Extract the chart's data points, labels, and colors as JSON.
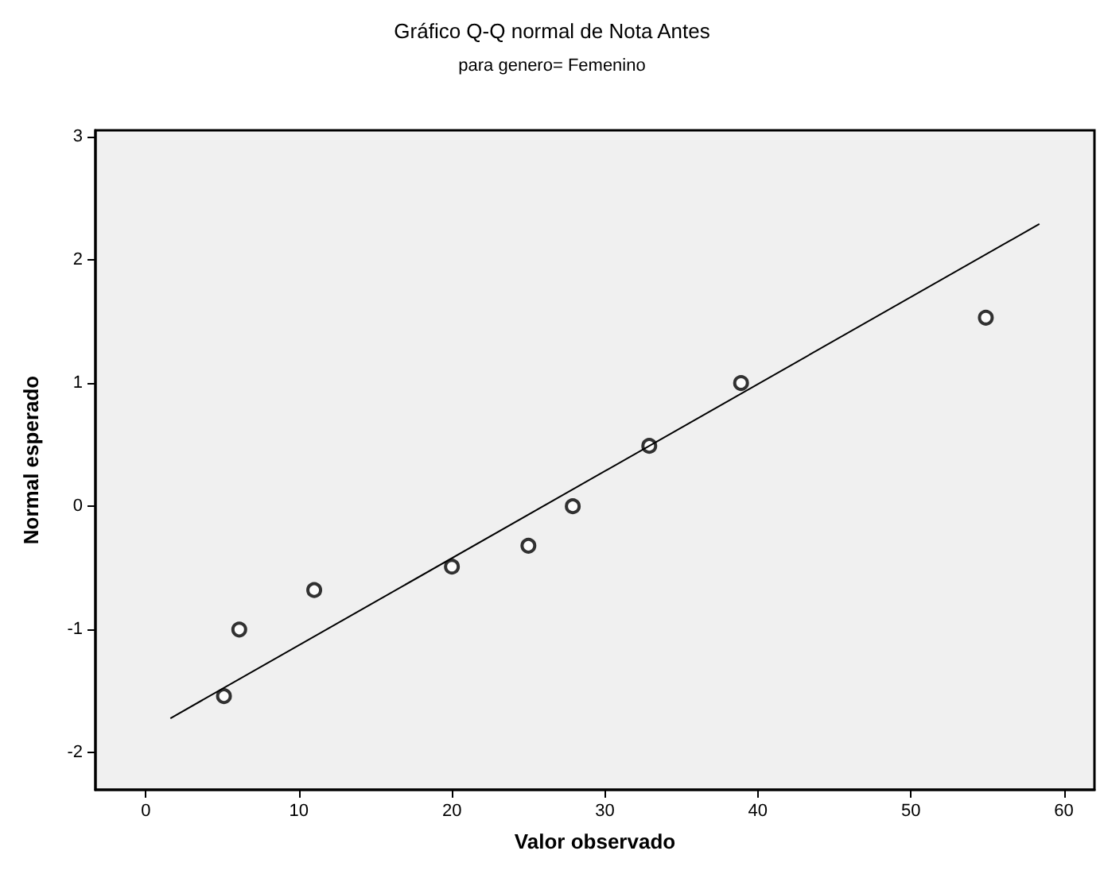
{
  "chart_data": {
    "type": "scatter",
    "title": "Gráfico Q-Q normal de Nota Antes",
    "subtitle": "para genero= Femenino",
    "xlabel": "Valor observado",
    "ylabel": "Normal esperado",
    "xlim": [
      -3.3,
      62
    ],
    "xticks": [
      0,
      10,
      20,
      30,
      40,
      50,
      60
    ],
    "ylim": [
      -2.3,
      3.05
    ],
    "yticks": [
      -2,
      -1,
      0,
      1,
      2,
      3
    ],
    "grid": false,
    "series": [
      {
        "color": "#000000",
        "marker": "circle",
        "x": [
          5.1,
          6.1,
          11,
          20,
          25,
          27.9,
          32.9,
          38.9,
          54.9
        ],
        "values": [
          -1.54,
          -1.0,
          -0.68,
          -0.49,
          -0.32,
          0.0,
          0.49,
          1.0,
          1.53
        ]
      },
      {
        "type": "line",
        "color": "#000000",
        "marker": "none",
        "x": [
          1.6,
          58.4
        ],
        "values": [
          -1.72,
          2.29
        ]
      }
    ]
  }
}
